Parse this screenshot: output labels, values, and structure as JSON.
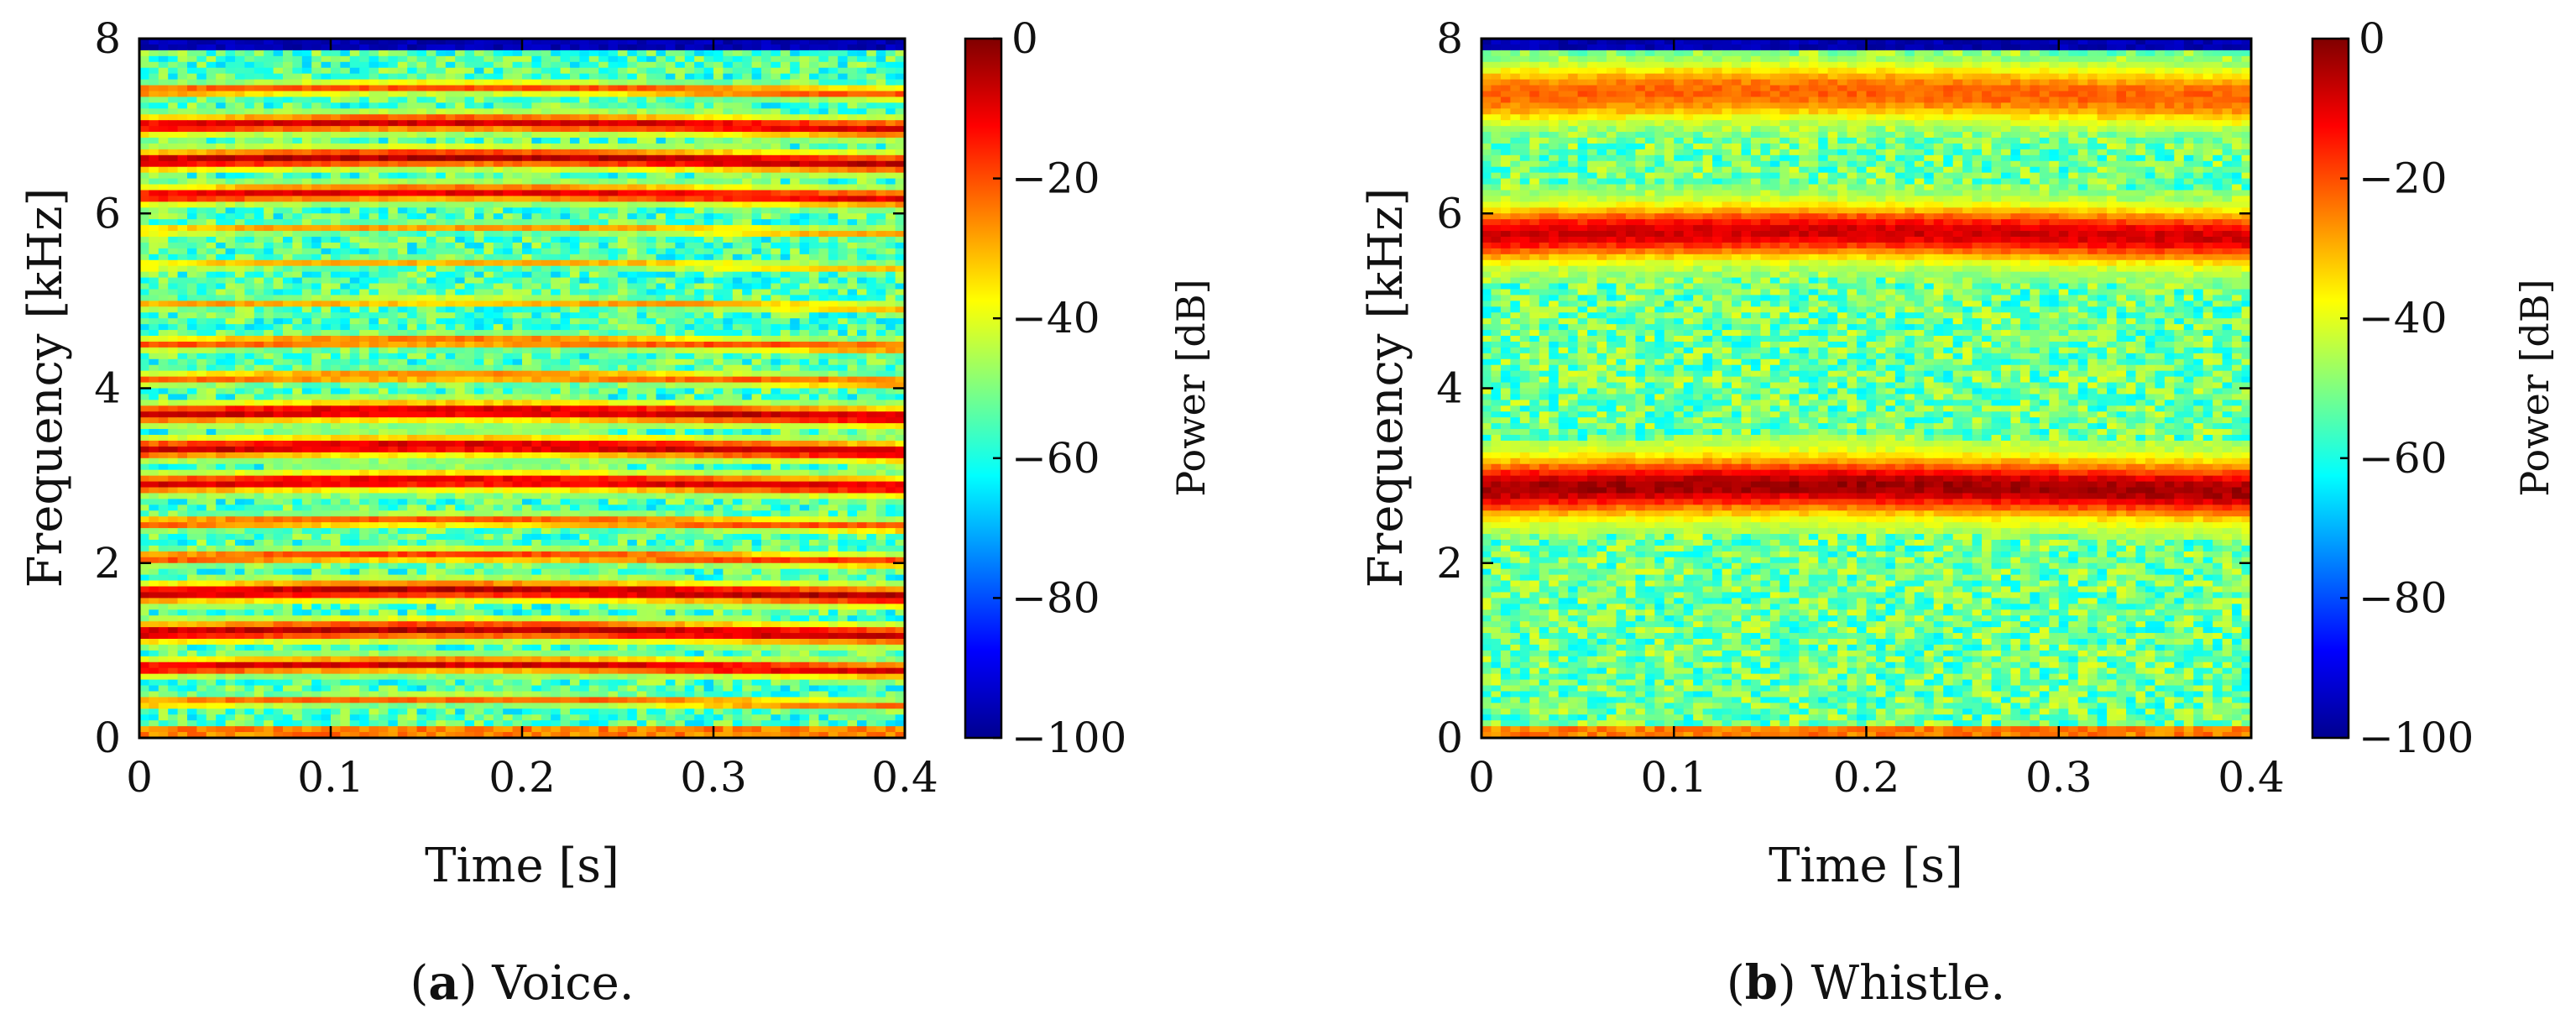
{
  "chart_data": [
    {
      "type": "heatmap",
      "subtype": "spectrogram",
      "caption": {
        "letter": "a",
        "open": "(",
        "close": ")",
        "text": " Voice."
      },
      "xlabel": "Time [s]",
      "ylabel": "Frequency [kHz]",
      "xlim": [
        0,
        0.4
      ],
      "ylim": [
        0,
        8
      ],
      "x_ticks": [
        0,
        0.1,
        0.2,
        0.3,
        0.4
      ],
      "x_tick_labels": [
        "0",
        "0.1",
        "0.2",
        "0.3",
        "0.4"
      ],
      "y_ticks": [
        0,
        2,
        4,
        6,
        8
      ],
      "y_tick_labels": [
        "0",
        "2",
        "4",
        "6",
        "8"
      ],
      "colorbar": {
        "label": "Power [dB]",
        "colormap": "jet",
        "range": [
          -100,
          0
        ],
        "ticks": [
          0,
          -20,
          -40,
          -60,
          -80,
          -100
        ],
        "tick_labels": [
          "0",
          "−20",
          "−40",
          "−60",
          "−80",
          "−100"
        ]
      },
      "background_level_db": -55,
      "top_edge_level_db": -95,
      "harmonic_bands": [
        {
          "freq_khz": 0.4,
          "level_db": -22,
          "width_khz": 0.05
        },
        {
          "freq_khz": 0.8,
          "level_db": -8,
          "width_khz": 0.06
        },
        {
          "freq_khz": 1.2,
          "level_db": -5,
          "width_khz": 0.07
        },
        {
          "freq_khz": 1.65,
          "level_db": -5,
          "width_khz": 0.07
        },
        {
          "freq_khz": 2.05,
          "level_db": -18,
          "width_khz": 0.06
        },
        {
          "freq_khz": 2.45,
          "level_db": -20,
          "width_khz": 0.06
        },
        {
          "freq_khz": 2.9,
          "level_db": -8,
          "width_khz": 0.07
        },
        {
          "freq_khz": 3.3,
          "level_db": -6,
          "width_khz": 0.07
        },
        {
          "freq_khz": 3.7,
          "level_db": -6,
          "width_khz": 0.07
        },
        {
          "freq_khz": 4.1,
          "level_db": -22,
          "width_khz": 0.06
        },
        {
          "freq_khz": 4.5,
          "level_db": -20,
          "width_khz": 0.06
        },
        {
          "freq_khz": 4.95,
          "level_db": -28,
          "width_khz": 0.05
        },
        {
          "freq_khz": 5.4,
          "level_db": -30,
          "width_khz": 0.05
        },
        {
          "freq_khz": 5.8,
          "level_db": -28,
          "width_khz": 0.05
        },
        {
          "freq_khz": 6.2,
          "level_db": -10,
          "width_khz": 0.07
        },
        {
          "freq_khz": 6.6,
          "level_db": -5,
          "width_khz": 0.07
        },
        {
          "freq_khz": 7.0,
          "level_db": -8,
          "width_khz": 0.07
        },
        {
          "freq_khz": 7.4,
          "level_db": -20,
          "width_khz": 0.06
        }
      ]
    },
    {
      "type": "heatmap",
      "subtype": "spectrogram",
      "caption": {
        "letter": "b",
        "open": "(",
        "close": ")",
        "text": " Whistle."
      },
      "xlabel": "Time [s]",
      "ylabel": "Frequency [kHz]",
      "xlim": [
        0,
        0.4
      ],
      "ylim": [
        0,
        8
      ],
      "x_ticks": [
        0,
        0.1,
        0.2,
        0.3,
        0.4
      ],
      "x_tick_labels": [
        "0",
        "0.1",
        "0.2",
        "0.3",
        "0.4"
      ],
      "y_ticks": [
        0,
        2,
        4,
        6,
        8
      ],
      "y_tick_labels": [
        "0",
        "2",
        "4",
        "6",
        "8"
      ],
      "colorbar": {
        "label": "Power [dB]",
        "colormap": "jet",
        "range": [
          -100,
          0
        ],
        "ticks": [
          0,
          -20,
          -40,
          -60,
          -80,
          -100
        ],
        "tick_labels": [
          "0",
          "−20",
          "−40",
          "−60",
          "−80",
          "−100"
        ]
      },
      "background_level_db": -52,
      "top_edge_level_db": -95,
      "harmonic_bands": [
        {
          "freq_khz": 2.85,
          "level_db": -3,
          "width_khz": 0.22
        },
        {
          "freq_khz": 5.75,
          "level_db": -8,
          "width_khz": 0.22
        },
        {
          "freq_khz": 7.35,
          "level_db": -22,
          "width_khz": 0.3
        }
      ]
    }
  ]
}
